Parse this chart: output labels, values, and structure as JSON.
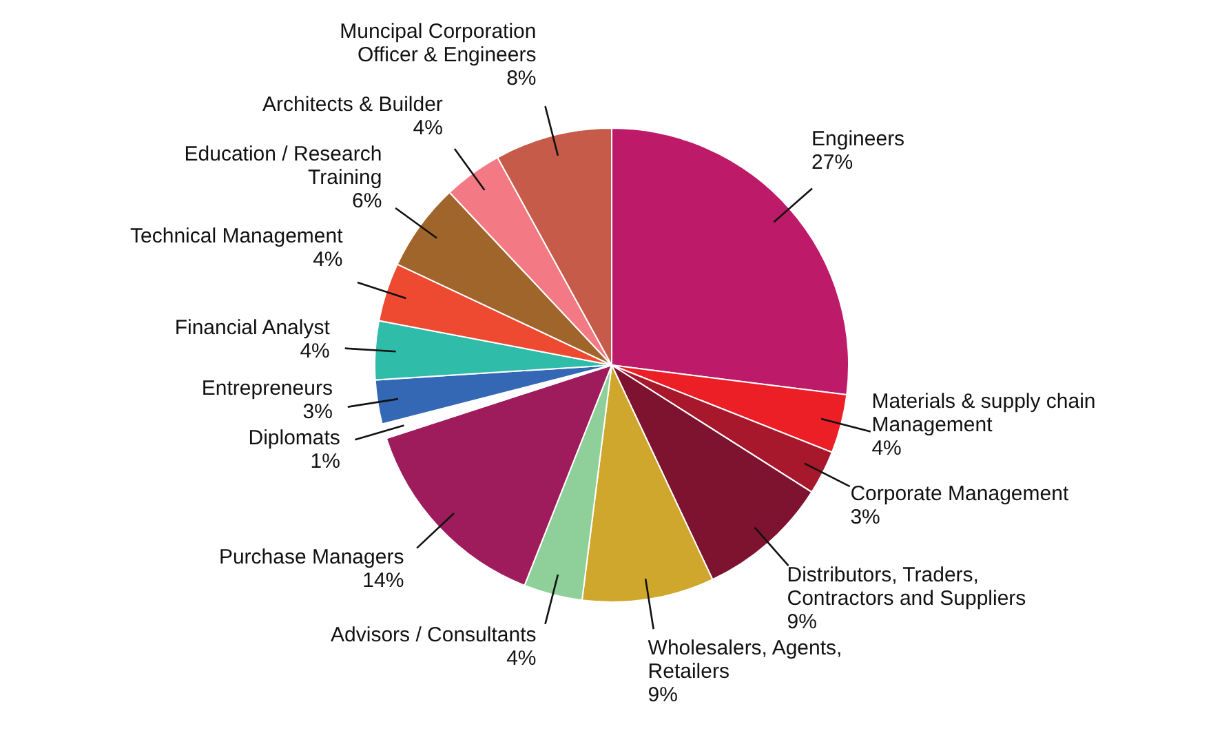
{
  "chart_data": {
    "type": "pie",
    "categories": [
      "Engineers",
      "Materials & supply chain Management",
      "Corporate Management",
      "Distributors, Traders, Contractors and Suppliers",
      "Wholesalers, Agents, Retailers",
      "Advisors / Consultants",
      "Purchase Managers",
      "Diplomats",
      "Entrepreneurs",
      "Financial Analyst",
      "Technical Management",
      "Education / Research Training",
      "Architects & Builder",
      "Muncipal Corporation Officer & Engineers"
    ],
    "values": [
      27,
      4,
      3,
      9,
      9,
      4,
      14,
      1,
      3,
      4,
      4,
      6,
      4,
      8
    ],
    "value_labels": [
      "27%",
      "4%",
      "3%",
      "9%",
      "9%",
      "4%",
      "14%",
      "1%",
      "3%",
      "4%",
      "4%",
      "6%",
      "4%",
      "8%"
    ],
    "colors": [
      "#bd1b69",
      "#ed1f26",
      "#a8182c",
      "#7e1330",
      "#cfa72c",
      "#8fcf9a",
      "#9e1c5c",
      "#ffffff",
      "#3467b4",
      "#2fbdaa",
      "#ee4a32",
      "#a0652a",
      "#f37a84",
      "#c55b48"
    ]
  }
}
